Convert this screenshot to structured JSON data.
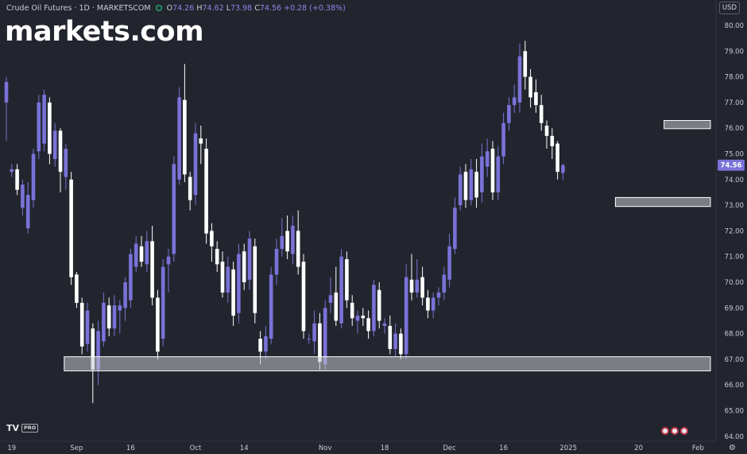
{
  "header": {
    "symbol": "Crude Oil Futures · 1D · MARKETSCOM",
    "o_label": "O",
    "o_value": "74.26",
    "h_label": "H",
    "h_value": "74.62",
    "l_label": "L",
    "l_value": "73.98",
    "c_label": "C",
    "c_value": "74.56",
    "change": "+0.28 (+0.38%)"
  },
  "logo_text": "markets.com",
  "currency": "USD",
  "last_price_label": "74.56",
  "watermark": "TV",
  "watermark_badge": "PRO",
  "colors": {
    "background": "#22252d",
    "up": "#7a72d8",
    "down": "#ffffff",
    "text": "#c9ccd4",
    "zone": "#c4c6cc"
  },
  "chart_data": {
    "type": "candlestick",
    "ylim": [
      64,
      80.5
    ],
    "y_ticks": [
      "80.00",
      "79.00",
      "78.00",
      "77.00",
      "76.00",
      "75.00",
      "74.00",
      "73.00",
      "72.00",
      "71.00",
      "70.00",
      "69.00",
      "68.00",
      "67.00",
      "66.00",
      "65.00",
      "64.00"
    ],
    "x_ticks": [
      {
        "label": "19",
        "i": 1
      },
      {
        "label": "Sep",
        "i": 13
      },
      {
        "label": "16",
        "i": 23
      },
      {
        "label": "Oct",
        "i": 35
      },
      {
        "label": "14",
        "i": 44
      },
      {
        "label": "Nov",
        "i": 59
      },
      {
        "label": "18",
        "i": 70
      },
      {
        "label": "Dec",
        "i": 82
      },
      {
        "label": "16",
        "i": 92
      },
      {
        "label": "2025",
        "i": 104
      },
      {
        "label": "20",
        "i": 117
      },
      {
        "label": "Feb",
        "i": 128
      }
    ],
    "candles": [
      [
        77.0,
        77.8,
        78.0,
        75.5
      ],
      [
        74.3,
        74.4,
        74.6,
        74.1
      ],
      [
        74.4,
        73.6,
        74.6,
        73.4
      ],
      [
        72.9,
        73.8,
        74.0,
        72.6
      ],
      [
        72.1,
        73.4,
        73.9,
        71.9
      ],
      [
        73.2,
        75.0,
        75.2,
        72.9
      ],
      [
        75.1,
        77.0,
        77.3,
        74.8
      ],
      [
        75.4,
        77.3,
        77.5,
        75.1
      ],
      [
        77.0,
        75.0,
        77.2,
        74.6
      ],
      [
        74.8,
        75.9,
        76.2,
        74.5
      ],
      [
        75.9,
        74.3,
        76.0,
        73.5
      ],
      [
        74.1,
        75.2,
        75.4,
        73.6
      ],
      [
        74.0,
        70.2,
        74.3,
        69.9
      ],
      [
        70.3,
        69.2,
        70.4,
        69.0
      ],
      [
        69.2,
        67.5,
        69.4,
        67.2
      ],
      [
        67.6,
        68.9,
        69.2,
        67.3
      ],
      [
        68.2,
        66.6,
        68.4,
        65.3
      ],
      [
        66.6,
        68.1,
        68.5,
        66.0
      ],
      [
        67.7,
        69.2,
        69.6,
        67.5
      ],
      [
        69.1,
        68.2,
        69.4,
        67.9
      ],
      [
        68.2,
        69.1,
        69.5,
        67.9
      ],
      [
        68.9,
        69.1,
        69.3,
        68.0
      ],
      [
        69.0,
        70.0,
        70.2,
        68.5
      ],
      [
        69.3,
        71.1,
        71.3,
        69.0
      ],
      [
        70.6,
        71.5,
        71.8,
        70.4
      ],
      [
        71.4,
        70.8,
        71.8,
        70.6
      ],
      [
        70.7,
        71.6,
        72.0,
        70.4
      ],
      [
        71.6,
        69.4,
        72.2,
        69.1
      ],
      [
        69.4,
        67.3,
        69.7,
        67.0
      ],
      [
        67.8,
        70.6,
        70.9,
        67.5
      ],
      [
        70.7,
        71.0,
        71.3,
        69.6
      ],
      [
        71.1,
        74.6,
        74.9,
        70.8
      ],
      [
        74.0,
        77.2,
        77.6,
        73.8
      ],
      [
        77.1,
        74.2,
        78.5,
        73.9
      ],
      [
        74.1,
        73.2,
        74.3,
        72.8
      ],
      [
        73.4,
        75.8,
        76.2,
        73.0
      ],
      [
        75.6,
        75.4,
        76.1,
        74.6
      ],
      [
        75.2,
        71.9,
        75.6,
        71.5
      ],
      [
        72.0,
        71.4,
        72.3,
        70.8
      ],
      [
        71.3,
        70.7,
        71.6,
        70.4
      ],
      [
        70.8,
        69.6,
        71.2,
        69.4
      ],
      [
        69.6,
        70.6,
        71.0,
        69.2
      ],
      [
        70.5,
        68.7,
        70.8,
        68.3
      ],
      [
        68.8,
        71.1,
        71.5,
        68.4
      ],
      [
        71.2,
        70.0,
        71.5,
        69.7
      ],
      [
        70.1,
        71.7,
        72.0,
        69.7
      ],
      [
        71.4,
        68.8,
        71.7,
        68.4
      ],
      [
        67.8,
        67.3,
        68.1,
        66.8
      ],
      [
        67.3,
        67.9,
        68.3,
        67.0
      ],
      [
        67.8,
        70.3,
        70.6,
        67.6
      ],
      [
        70.3,
        71.3,
        71.7,
        69.9
      ],
      [
        71.3,
        71.8,
        72.5,
        71.0
      ],
      [
        72.0,
        71.2,
        72.6,
        70.9
      ],
      [
        71.1,
        72.2,
        72.6,
        70.7
      ],
      [
        72.0,
        70.6,
        72.8,
        70.3
      ],
      [
        70.8,
        68.1,
        71.1,
        67.8
      ],
      [
        67.8,
        67.8,
        68.0,
        67.6
      ],
      [
        67.7,
        68.4,
        68.9,
        67.2
      ],
      [
        68.4,
        66.9,
        68.8,
        66.6
      ],
      [
        66.8,
        69.0,
        69.3,
        66.6
      ],
      [
        69.2,
        69.5,
        70.2,
        68.8
      ],
      [
        69.6,
        68.5,
        70.6,
        68.3
      ],
      [
        68.4,
        71.0,
        71.3,
        68.2
      ],
      [
        70.9,
        69.3,
        71.2,
        69.0
      ],
      [
        69.2,
        68.6,
        69.5,
        68.3
      ],
      [
        68.5,
        68.7,
        68.9,
        68.0
      ],
      [
        68.7,
        68.6,
        69.0,
        68.3
      ],
      [
        68.6,
        68.1,
        68.9,
        67.8
      ],
      [
        68.1,
        69.9,
        70.1,
        67.9
      ],
      [
        69.7,
        68.5,
        70.0,
        68.2
      ],
      [
        68.3,
        68.4,
        68.6,
        68.0
      ],
      [
        68.3,
        67.4,
        68.7,
        67.2
      ],
      [
        67.4,
        68.0,
        68.4,
        67.1
      ],
      [
        68.0,
        67.2,
        68.2,
        67.0
      ],
      [
        67.2,
        70.2,
        70.7,
        67.0
      ],
      [
        70.1,
        69.6,
        71.1,
        69.3
      ],
      [
        69.6,
        70.1,
        70.9,
        69.4
      ],
      [
        70.2,
        69.4,
        70.6,
        69.1
      ],
      [
        69.4,
        68.9,
        69.7,
        68.6
      ],
      [
        68.9,
        69.4,
        69.6,
        68.6
      ],
      [
        69.4,
        69.6,
        69.8,
        69.1
      ],
      [
        69.6,
        70.3,
        70.6,
        69.3
      ],
      [
        70.1,
        71.4,
        71.9,
        69.8
      ],
      [
        71.3,
        72.9,
        73.3,
        71.1
      ],
      [
        73.0,
        74.2,
        74.5,
        72.8
      ],
      [
        74.3,
        73.2,
        74.6,
        72.9
      ],
      [
        73.2,
        74.4,
        74.8,
        73.0
      ],
      [
        74.3,
        73.3,
        74.8,
        72.9
      ],
      [
        73.5,
        74.9,
        75.4,
        73.1
      ],
      [
        74.5,
        75.1,
        75.6,
        74.1
      ],
      [
        75.2,
        73.5,
        75.5,
        73.2
      ],
      [
        73.5,
        74.9,
        75.3,
        73.2
      ],
      [
        74.9,
        76.2,
        76.6,
        74.6
      ],
      [
        76.2,
        76.9,
        77.2,
        75.9
      ],
      [
        76.9,
        77.2,
        77.7,
        76.6
      ],
      [
        77.0,
        78.8,
        79.3,
        76.6
      ],
      [
        79.0,
        78.0,
        79.4,
        77.5
      ],
      [
        78.0,
        77.2,
        78.3,
        76.8
      ],
      [
        77.4,
        76.9,
        77.9,
        76.6
      ],
      [
        76.9,
        76.2,
        77.3,
        75.9
      ],
      [
        76.1,
        75.7,
        76.3,
        75.2
      ],
      [
        75.7,
        75.3,
        76.0,
        74.8
      ],
      [
        75.4,
        74.3,
        75.5,
        74.0
      ],
      [
        74.26,
        74.56,
        74.62,
        73.98
      ]
    ],
    "zones": [
      {
        "from_i": 11,
        "to_i": 130,
        "y_low": 66.55,
        "y_high": 67.1
      },
      {
        "from_i": 113,
        "to_i": 130,
        "y_low": 72.95,
        "y_high": 73.3
      },
      {
        "from_i": 122,
        "to_i": 130,
        "y_low": 75.98,
        "y_high": 76.3
      }
    ]
  }
}
